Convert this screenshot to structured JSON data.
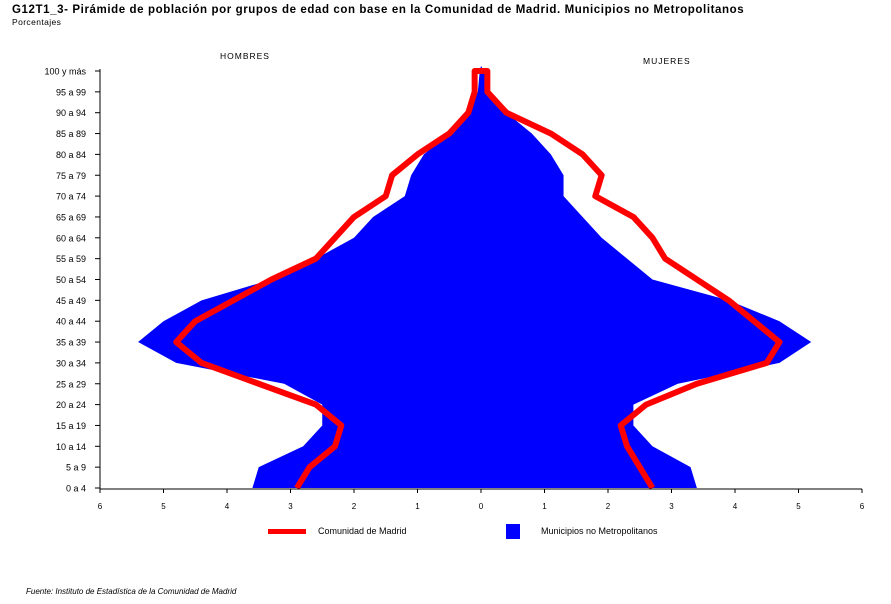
{
  "title": "G12T1_3- Pirámide de población por grupos de edad con base en la Comunidad de Madrid.  Municipios no Metropolitanos",
  "subtitle": "Porcentajes",
  "side_labels": {
    "left": "HOMBRES",
    "right": "MUJERES"
  },
  "source": "Fuente: Instituto de Estadística de la Comunidad de Madrid",
  "colors": {
    "madrid": "#ff0000",
    "municipios": "#0000ff"
  },
  "chart_data": {
    "type": "area",
    "title": "G12T1_3- Pirámide de población por grupos de edad con base en la Comunidad de Madrid.  Municipios no Metropolitanos",
    "ylabel": "",
    "xlabel": "",
    "xlim": [
      -6,
      6
    ],
    "x_tick_labels": [
      "6",
      "5",
      "4",
      "3",
      "2",
      "1",
      "0",
      "1",
      "2",
      "3",
      "4",
      "5",
      "6"
    ],
    "categories": [
      "0 a 4",
      "5 a 9",
      "10 a 14",
      "15 a 19",
      "20 a 24",
      "25 a 29",
      "30 a 34",
      "35 a 39",
      "40 a 44",
      "45 a 49",
      "50 a 54",
      "55 a 59",
      "60 a 64",
      "65 a 69",
      "70 a 74",
      "75 a 79",
      "80 a 84",
      "85 a 89",
      "90 a 94",
      "95 a 99",
      "100 y más"
    ],
    "series": [
      {
        "name": "Municipios no Metropolitanos",
        "role": "area",
        "hombres": [
          3.6,
          3.5,
          2.8,
          2.5,
          2.5,
          3.1,
          4.8,
          5.4,
          5.0,
          4.4,
          3.3,
          2.6,
          2.0,
          1.7,
          1.2,
          1.1,
          0.9,
          0.5,
          0.2,
          0.05,
          0.02
        ],
        "mujeres": [
          3.4,
          3.3,
          2.7,
          2.4,
          2.4,
          3.1,
          4.7,
          5.2,
          4.7,
          3.9,
          2.7,
          2.3,
          1.9,
          1.6,
          1.3,
          1.3,
          1.1,
          0.8,
          0.4,
          0.1,
          0.05
        ]
      },
      {
        "name": "Comunidad de Madrid",
        "role": "line",
        "hombres": [
          2.9,
          2.7,
          2.3,
          2.2,
          2.6,
          3.5,
          4.4,
          4.8,
          4.5,
          3.9,
          3.3,
          2.6,
          2.3,
          2.0,
          1.5,
          1.4,
          1.0,
          0.5,
          0.2,
          0.1,
          0.1
        ],
        "mujeres": [
          2.7,
          2.5,
          2.3,
          2.2,
          2.6,
          3.4,
          4.5,
          4.7,
          4.3,
          3.9,
          3.4,
          2.9,
          2.7,
          2.4,
          1.8,
          1.9,
          1.6,
          1.1,
          0.4,
          0.1,
          0.1
        ]
      }
    ],
    "legend": [
      "Comunidad de Madrid",
      "Municipios no Metropolitanos"
    ],
    "legend_position": "bottom",
    "grid": false
  }
}
